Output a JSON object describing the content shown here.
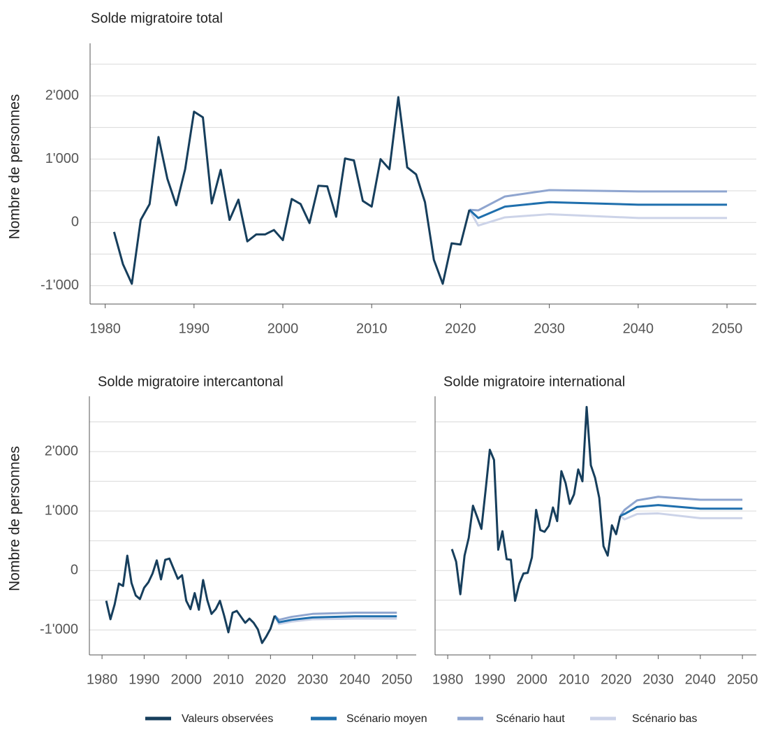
{
  "chart_data": [
    {
      "type": "line",
      "title": "Solde migratoire total",
      "ylabel": "Nombre de personnes",
      "xlim": [
        1978.3,
        2053.3
      ],
      "ylim": [
        -1290,
        2830
      ],
      "xticks": [
        1980,
        1990,
        2000,
        2010,
        2020,
        2030,
        2040,
        2050
      ],
      "yticks": [
        {
          "value": -1000,
          "label": "-1'000"
        },
        0,
        {
          "value": 1000,
          "label": "1'000"
        },
        {
          "value": 2000,
          "label": "2'000"
        }
      ],
      "ygrid": [
        -1000,
        -500,
        0,
        500,
        1000,
        1500,
        2000,
        2500
      ],
      "series": [
        {
          "name": "Valeurs observées",
          "color": "#163e5c",
          "x": [
            1981,
            1982,
            1983,
            1984,
            1985,
            1986,
            1987,
            1988,
            1989,
            1990,
            1991,
            1992,
            1993,
            1994,
            1995,
            1996,
            1997,
            1998,
            1999,
            2000,
            2001,
            2002,
            2003,
            2004,
            2005,
            2006,
            2007,
            2008,
            2009,
            2010,
            2011,
            2012,
            2013,
            2014,
            2015,
            2016,
            2017,
            2018,
            2019,
            2020,
            2021
          ],
          "values": [
            -150,
            -660,
            -970,
            40,
            290,
            1350,
            690,
            270,
            840,
            1750,
            1660,
            300,
            830,
            40,
            360,
            -300,
            -190,
            -190,
            -120,
            -280,
            370,
            290,
            -10,
            580,
            570,
            90,
            1010,
            980,
            340,
            250,
            1000,
            840,
            1980,
            870,
            760,
            320,
            -590,
            -970,
            -330,
            -350,
            200
          ]
        },
        {
          "name": "Scénario moyen",
          "color": "#1f6fad",
          "x": [
            2021,
            2022,
            2025,
            2030,
            2040,
            2050
          ],
          "values": [
            200,
            70,
            250,
            320,
            280,
            280
          ]
        },
        {
          "name": "Scénario haut",
          "color": "#8fa5cf",
          "x": [
            2021,
            2022,
            2025,
            2030,
            2040,
            2050
          ],
          "values": [
            200,
            190,
            410,
            510,
            490,
            490
          ]
        },
        {
          "name": "Scénario bas",
          "color": "#ccd3e8",
          "x": [
            2021,
            2022,
            2025,
            2030,
            2040,
            2050
          ],
          "values": [
            200,
            -50,
            80,
            130,
            70,
            70
          ]
        }
      ]
    },
    {
      "type": "line",
      "title": "Solde migratoire intercantonal",
      "ylabel": "Nombre de personnes",
      "xlim": [
        1977,
        2054.6
      ],
      "ylim": [
        -1420,
        2930
      ],
      "xticks": [
        1980,
        1990,
        2000,
        2010,
        2020,
        2030,
        2040,
        2050
      ],
      "yticks": [
        {
          "value": -1000,
          "label": "-1'000"
        },
        0,
        {
          "value": 1000,
          "label": "1'000"
        },
        {
          "value": 2000,
          "label": "2'000"
        }
      ],
      "ygrid": [
        -1000,
        -500,
        0,
        500,
        1000,
        1500,
        2000,
        2500
      ],
      "series": [
        {
          "name": "Valeurs observées",
          "color": "#163e5c",
          "x": [
            1981,
            1982,
            1983,
            1984,
            1985,
            1986,
            1987,
            1988,
            1989,
            1990,
            1991,
            1992,
            1993,
            1994,
            1995,
            1996,
            1997,
            1998,
            1999,
            2000,
            2001,
            2002,
            2003,
            2004,
            2005,
            2006,
            2007,
            2008,
            2009,
            2010,
            2011,
            2012,
            2013,
            2014,
            2015,
            2016,
            2017,
            2018,
            2019,
            2020,
            2021
          ],
          "values": [
            -510,
            -820,
            -570,
            -220,
            -260,
            250,
            -210,
            -420,
            -480,
            -290,
            -200,
            -50,
            170,
            -150,
            180,
            200,
            30,
            -140,
            -80,
            -510,
            -650,
            -380,
            -660,
            -160,
            -500,
            -730,
            -650,
            -510,
            -760,
            -1040,
            -710,
            -680,
            -780,
            -880,
            -810,
            -880,
            -990,
            -1220,
            -1110,
            -980,
            -760
          ]
        },
        {
          "name": "Scénario moyen",
          "color": "#1f6fad",
          "x": [
            2021,
            2022,
            2025,
            2030,
            2040,
            2050
          ],
          "values": [
            -760,
            -870,
            -830,
            -790,
            -770,
            -770
          ]
        },
        {
          "name": "Scénario haut",
          "color": "#8fa5cf",
          "x": [
            2021,
            2022,
            2025,
            2030,
            2040,
            2050
          ],
          "values": [
            -760,
            -830,
            -780,
            -730,
            -710,
            -710
          ]
        },
        {
          "name": "Scénario bas",
          "color": "#ccd3e8",
          "x": [
            2021,
            2022,
            2025,
            2030,
            2040,
            2050
          ],
          "values": [
            -760,
            -900,
            -860,
            -820,
            -810,
            -810
          ]
        }
      ]
    },
    {
      "type": "line",
      "title": "Solde migratoire international",
      "xlim": [
        1977,
        2053.3
      ],
      "ylim": [
        -1420,
        2930
      ],
      "xticks": [
        1980,
        1990,
        2000,
        2010,
        2020,
        2030,
        2040,
        2050
      ],
      "ygrid": [
        -1000,
        -500,
        0,
        500,
        1000,
        1500,
        2000,
        2500
      ],
      "series": [
        {
          "name": "Valeurs observées",
          "color": "#163e5c",
          "x": [
            1981,
            1982,
            1983,
            1984,
            1985,
            1986,
            1987,
            1988,
            1989,
            1990,
            1991,
            1992,
            1993,
            1994,
            1995,
            1996,
            1997,
            1998,
            1999,
            2000,
            2001,
            2002,
            2003,
            2004,
            2005,
            2006,
            2007,
            2008,
            2009,
            2010,
            2011,
            2012,
            2013,
            2014,
            2015,
            2016,
            2017,
            2018,
            2019,
            2020,
            2021
          ],
          "values": [
            360,
            150,
            -400,
            250,
            550,
            1090,
            900,
            700,
            1350,
            2030,
            1860,
            350,
            660,
            190,
            180,
            -510,
            -220,
            -50,
            -40,
            220,
            1020,
            680,
            650,
            750,
            1060,
            830,
            1670,
            1470,
            1120,
            1280,
            1700,
            1500,
            2750,
            1770,
            1560,
            1220,
            410,
            250,
            760,
            610,
            920
          ]
        },
        {
          "name": "Scénario moyen",
          "color": "#1f6fad",
          "x": [
            2021,
            2022,
            2025,
            2030,
            2040,
            2050
          ],
          "values": [
            920,
            950,
            1070,
            1100,
            1040,
            1040
          ]
        },
        {
          "name": "Scénario haut",
          "color": "#8fa5cf",
          "x": [
            2021,
            2022,
            2025,
            2030,
            2040,
            2050
          ],
          "values": [
            920,
            1020,
            1180,
            1240,
            1190,
            1190
          ]
        },
        {
          "name": "Scénario bas",
          "color": "#ccd3e8",
          "x": [
            2021,
            2022,
            2025,
            2030,
            2040,
            2050
          ],
          "values": [
            920,
            860,
            950,
            960,
            880,
            880
          ]
        }
      ]
    }
  ]
}
